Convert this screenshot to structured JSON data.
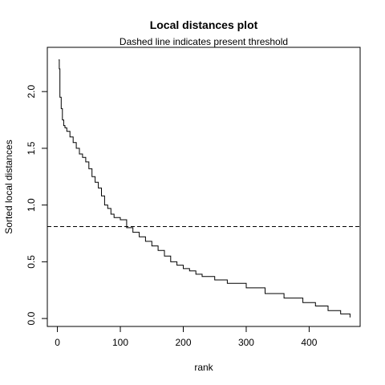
{
  "chart_data": {
    "type": "line",
    "title": "Local distances plot",
    "subtitle": "Dashed line indicates present threshold",
    "xlabel": "rank",
    "ylabel": "Sorted local distances",
    "xlim": [
      -16,
      481
    ],
    "ylim": [
      -0.07,
      2.39
    ],
    "x_ticks": [
      0,
      100,
      200,
      300,
      400
    ],
    "y_ticks": [
      0.0,
      0.5,
      1.0,
      1.5,
      2.0
    ],
    "x_tick_labels": [
      "0",
      "100",
      "200",
      "300",
      "400"
    ],
    "y_tick_labels": [
      "0.0",
      "0.5",
      "1.0",
      "1.5",
      "2.0"
    ],
    "threshold": 0.81,
    "grid": false,
    "series": [
      {
        "style": "step",
        "color": "#000000",
        "x": [
          2,
          3,
          4,
          6,
          8,
          10,
          12,
          15,
          20,
          25,
          30,
          35,
          40,
          45,
          50,
          55,
          60,
          65,
          70,
          75,
          80,
          85,
          90,
          100,
          110,
          120,
          130,
          140,
          150,
          160,
          170,
          180,
          190,
          200,
          210,
          220,
          230,
          250,
          270,
          300,
          330,
          360,
          390,
          410,
          430,
          450,
          465
        ],
        "y": [
          2.28,
          2.2,
          1.95,
          1.85,
          1.75,
          1.7,
          1.68,
          1.65,
          1.6,
          1.55,
          1.5,
          1.45,
          1.42,
          1.38,
          1.32,
          1.25,
          1.2,
          1.15,
          1.08,
          1.0,
          0.97,
          0.92,
          0.89,
          0.87,
          0.8,
          0.76,
          0.72,
          0.68,
          0.64,
          0.6,
          0.55,
          0.5,
          0.47,
          0.44,
          0.42,
          0.39,
          0.37,
          0.34,
          0.31,
          0.27,
          0.22,
          0.18,
          0.14,
          0.11,
          0.07,
          0.04,
          0.01
        ]
      }
    ]
  }
}
